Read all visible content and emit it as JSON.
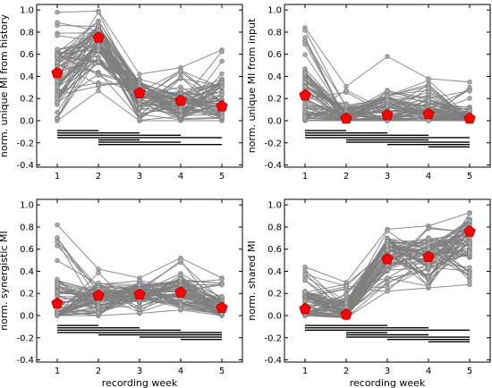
{
  "chart_data": [
    {
      "type": "line",
      "ylabel": "norm. unique MI from history",
      "xlabel": "",
      "x": [
        1,
        2,
        3,
        4,
        5
      ],
      "xticks": [
        "1",
        "2",
        "3",
        "4",
        "5"
      ],
      "ylim": [
        -0.42,
        1.05
      ],
      "yticks": [
        "-0.4",
        "-0.2",
        "0.0",
        "0.2",
        "0.4",
        "0.6",
        "0.8",
        "1.0"
      ],
      "mean": [
        0.43,
        0.75,
        0.25,
        0.18,
        0.13
      ],
      "series_color": "#808080",
      "mean_color": "#ff0000",
      "spread": [
        {
          "center": 0.4,
          "low": 0.0,
          "high": 0.98
        },
        {
          "center": 0.72,
          "low": 0.27,
          "high": 0.99
        },
        {
          "center": 0.22,
          "low": 0.0,
          "high": 0.42
        },
        {
          "center": 0.15,
          "low": 0.0,
          "high": 0.48
        },
        {
          "center": 0.2,
          "low": 0.0,
          "high": 0.64
        }
      ],
      "significance_bars": [
        [
          1,
          2
        ],
        [
          1,
          3
        ],
        [
          1,
          4
        ],
        [
          1,
          5
        ],
        [
          2,
          3
        ],
        [
          2,
          4
        ],
        [
          2,
          5
        ]
      ]
    },
    {
      "type": "line",
      "ylabel": "norm. unique MI from input",
      "xlabel": "",
      "x": [
        1,
        2,
        3,
        4,
        5
      ],
      "xticks": [
        "1",
        "2",
        "3",
        "4",
        "5"
      ],
      "ylim": [
        -0.42,
        1.05
      ],
      "yticks": [
        "-0.4",
        "-0.2",
        "0.0",
        "0.2",
        "0.4",
        "0.6",
        "0.8",
        "1.0"
      ],
      "mean": [
        0.23,
        0.02,
        0.05,
        0.06,
        0.02
      ],
      "series_color": "#808080",
      "mean_color": "#ff0000",
      "spread": [
        {
          "center": 0.25,
          "low": 0.0,
          "high": 0.84
        },
        {
          "center": 0.05,
          "low": 0.0,
          "high": 0.31
        },
        {
          "center": 0.08,
          "low": 0.0,
          "high": 0.58
        },
        {
          "center": 0.1,
          "low": 0.0,
          "high": 0.38
        },
        {
          "center": 0.04,
          "low": 0.0,
          "high": 0.35
        }
      ],
      "significance_bars": [
        [
          1,
          2
        ],
        [
          1,
          3
        ],
        [
          1,
          4
        ],
        [
          1,
          5
        ],
        [
          2,
          4
        ],
        [
          2,
          5
        ],
        [
          3,
          5
        ],
        [
          4,
          5
        ]
      ]
    },
    {
      "type": "line",
      "ylabel": "norm. synergistic MI",
      "xlabel": "recording week",
      "x": [
        1,
        2,
        3,
        4,
        5
      ],
      "xticks": [
        "1",
        "2",
        "3",
        "4",
        "5"
      ],
      "ylim": [
        -0.42,
        1.05
      ],
      "yticks": [
        "-0.4",
        "-0.2",
        "0.0",
        "0.2",
        "0.4",
        "0.6",
        "0.8",
        "1.0"
      ],
      "mean": [
        0.11,
        0.18,
        0.19,
        0.21,
        0.07
      ],
      "series_color": "#808080",
      "mean_color": "#ff0000",
      "spread": [
        {
          "center": 0.12,
          "low": 0.0,
          "high": 0.82
        },
        {
          "center": 0.18,
          "low": 0.0,
          "high": 0.42
        },
        {
          "center": 0.2,
          "low": 0.02,
          "high": 0.34
        },
        {
          "center": 0.22,
          "low": 0.05,
          "high": 0.52
        },
        {
          "center": 0.08,
          "low": 0.0,
          "high": 0.34
        }
      ],
      "significance_bars": [
        [
          1,
          2
        ],
        [
          1,
          3
        ],
        [
          1,
          4
        ],
        [
          1,
          5
        ],
        [
          2,
          5
        ],
        [
          3,
          5
        ],
        [
          4,
          5
        ]
      ]
    },
    {
      "type": "line",
      "ylabel": "norm. shared MI",
      "xlabel": "recording week",
      "x": [
        1,
        2,
        3,
        4,
        5
      ],
      "xticks": [
        "1",
        "2",
        "3",
        "4",
        "5"
      ],
      "ylim": [
        -0.42,
        1.05
      ],
      "yticks": [
        "-0.4",
        "-0.2",
        "0.0",
        "0.2",
        "0.4",
        "0.6",
        "0.8",
        "1.0"
      ],
      "mean": [
        0.06,
        0.01,
        0.51,
        0.53,
        0.76
      ],
      "series_color": "#808080",
      "mean_color": "#ff0000",
      "spread": [
        {
          "center": 0.1,
          "low": 0.0,
          "high": 0.44
        },
        {
          "center": 0.05,
          "low": -0.02,
          "high": 0.3
        },
        {
          "center": 0.55,
          "low": 0.22,
          "high": 0.78
        },
        {
          "center": 0.55,
          "low": 0.25,
          "high": 0.81
        },
        {
          "center": 0.7,
          "low": 0.28,
          "high": 0.93
        }
      ],
      "significance_bars": [
        [
          1,
          3
        ],
        [
          1,
          4
        ],
        [
          1,
          5
        ],
        [
          2,
          3
        ],
        [
          2,
          4
        ],
        [
          2,
          5
        ],
        [
          3,
          5
        ],
        [
          4,
          5
        ]
      ]
    }
  ]
}
